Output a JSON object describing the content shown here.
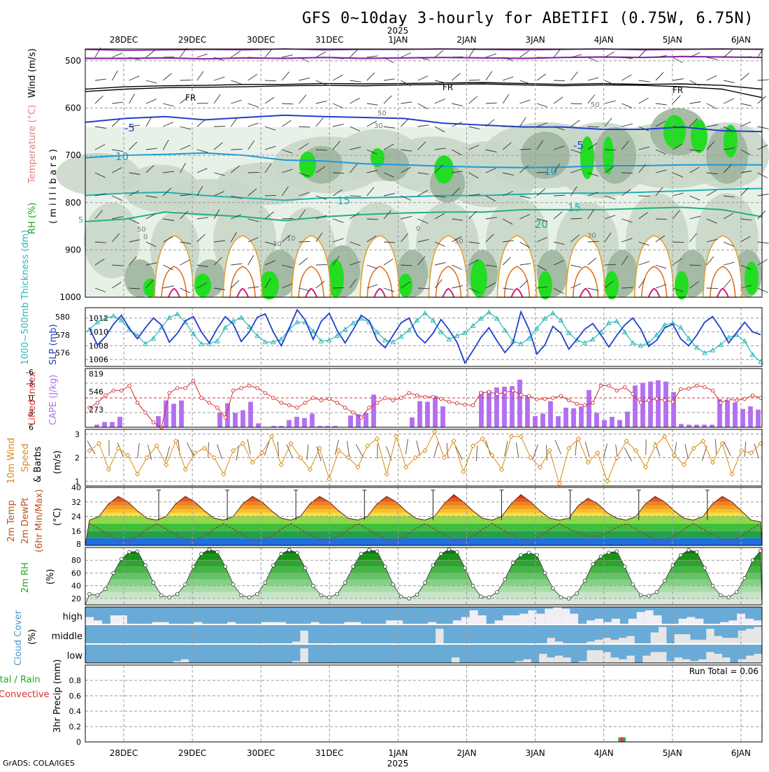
{
  "title": "GFS 0~10day 3-hourly for ABETIFI (0.75W, 6.75N)",
  "credit": "GrADS: COLA/IGES",
  "year_label": "2025",
  "dates": [
    "28DEC",
    "29DEC",
    "30DEC",
    "31DEC",
    "1JAN",
    "2JAN",
    "3JAN",
    "4JAN",
    "5JAN",
    "6JAN"
  ],
  "colors": {
    "grid": "#9a9a9a",
    "rh_dark": "#9fb59f",
    "rh_mid": "#c7d6c7",
    "rh_light": "#e8f1e8",
    "rh_green": "#22dd22",
    "slp": "#1f3fcf",
    "thickness": "#2ab8b8",
    "lifted": "#d43030",
    "cape": "#b36ff0",
    "wind10": "#d98a10",
    "cloud": "#6aaad6",
    "cloud_bar": "#e6e6e6",
    "rh2m": "#22aa22"
  },
  "panels": {
    "upper": {
      "ylabel_rh": "RH (%)",
      "ylabel_temp": "Temperature (°C)",
      "ylabel_wind": "Wind (m/s)",
      "ylabel_units": "( m i l l i b a r s )",
      "pressure_ticks": [
        "500",
        "600",
        "700",
        "800",
        "900",
        "1000"
      ],
      "contour_labels": [
        "-5",
        "FR",
        "FR",
        "FR",
        "-5",
        "-5",
        "10",
        "10",
        "15",
        "15",
        "20",
        "5",
        "10",
        "30",
        "50",
        "50",
        "0",
        "0",
        "30",
        "50",
        "50",
        "30"
      ]
    },
    "slp": {
      "ylabel_thick": "1000~500mb Thickness (dm)",
      "ylabel_slp": "SLP (mb)",
      "left_ticks": [
        "580",
        "578",
        "576"
      ],
      "right_ticks": [
        "1012",
        "1010",
        "1008",
        "1006"
      ]
    },
    "cape": {
      "ylabel_li": "Lifted Index",
      "ylabel_cape": "CAPE (J/kg)",
      "left_ticks": [
        "-3",
        "0",
        "3",
        "6",
        "-6"
      ],
      "right_ticks": [
        "819",
        "546",
        "273"
      ]
    },
    "wind10": {
      "ylabel_a": "10m Wind",
      "ylabel_b": "Speed",
      "ylabel_c": "& Barbs",
      "ylabel_units": "(m/s)",
      "ticks": [
        "3",
        "2",
        "1"
      ]
    },
    "temp2m": {
      "ylabel_a": "2m Temp",
      "ylabel_b": "2m DewPt",
      "ylabel_c": "(6hr Min/Max)",
      "ylabel_units": "(°C)",
      "ticks": [
        "40",
        "32",
        "24",
        "16",
        "8"
      ]
    },
    "rh2m": {
      "ylabel": "2m RH",
      "ylabel_units": "(%)",
      "ticks": [
        "80",
        "60",
        "40",
        "20"
      ]
    },
    "cloud": {
      "ylabel": "Cloud Cover",
      "ylabel_units": "(%)",
      "levels": [
        "high",
        "middle",
        "low"
      ]
    },
    "precip": {
      "ylabel_a": "Total / Rain",
      "ylabel_b": "Convective",
      "ylabel_c": "3hr Precip (mm)",
      "ticks": [
        "0.8",
        "0.6",
        "0.4",
        "0.2",
        "0"
      ],
      "run_total": "Run Total = 0.06"
    }
  },
  "chart_data": [
    {
      "type": "line",
      "name": "SLP",
      "ylabel": "SLP (mb)",
      "ylim": [
        1005,
        1013.5
      ],
      "values": [
        1010.5,
        1008.1,
        1009.3,
        1011.1,
        1012.4,
        1010.5,
        1009.0,
        1010.6,
        1012.0,
        1011.0,
        1008.5,
        1009.8,
        1011.6,
        1012.2,
        1010.0,
        1008.4,
        1010.5,
        1012.2,
        1011.1,
        1008.6,
        1010.0,
        1012.1,
        1012.6,
        1010.0,
        1008.0,
        1010.5,
        1013.2,
        1011.7,
        1008.9,
        1011.5,
        1012.7,
        1010.2,
        1008.4,
        1010.3,
        1012.4,
        1011.6,
        1008.8,
        1007.7,
        1009.5,
        1011.3,
        1012.0,
        1009.5,
        1008.4,
        1009.8,
        1011.8,
        1010.3,
        1008.5,
        1005.5,
        1007.3,
        1009.2,
        1010.6,
        1008.7,
        1007.0,
        1008.4,
        1012.9,
        1010.4,
        1006.8,
        1008.1,
        1010.8,
        1009.8,
        1007.5,
        1008.9,
        1010.4,
        1011.2,
        1009.6,
        1007.8,
        1009.5,
        1011.0,
        1012.0,
        1010.4,
        1007.9,
        1008.8,
        1010.6,
        1011.1,
        1009.0,
        1008.0,
        1009.5,
        1011.4,
        1012.2,
        1010.5,
        1008.4,
        1009.9,
        1011.4,
        1010.0,
        1009.6
      ]
    },
    {
      "type": "line",
      "name": "Thickness",
      "ylabel": "1000~500mb Thickness (dm)",
      "ylim": [
        574.5,
        581
      ],
      "values": [
        578.6,
        579.4,
        579.8,
        580.1,
        579.6,
        578.6,
        577.9,
        577.0,
        577.6,
        578.8,
        579.9,
        580.3,
        579.4,
        578.1,
        577.0,
        577.0,
        577.3,
        578.8,
        579.5,
        579.9,
        578.9,
        577.9,
        577.2,
        577.2,
        577.5,
        578.6,
        579.4,
        579.4,
        578.4,
        577.3,
        577.4,
        577.9,
        578.6,
        579.3,
        579.8,
        579.4,
        578.3,
        577.4,
        577.2,
        577.8,
        578.5,
        579.6,
        580.4,
        579.6,
        578.3,
        577.5,
        577.9,
        578.2,
        579.0,
        579.8,
        580.5,
        579.8,
        578.5,
        577.3,
        577.0,
        577.6,
        578.7,
        579.8,
        580.4,
        579.6,
        578.2,
        577.4,
        577.1,
        577.5,
        578.3,
        579.3,
        579.5,
        578.3,
        577.1,
        576.8,
        577.1,
        578.0,
        579.1,
        579.3,
        578.8,
        577.6,
        576.6,
        576.0,
        576.3,
        576.9,
        577.7,
        578.0,
        577.3,
        575.8,
        575.0
      ]
    },
    {
      "type": "bar",
      "name": "CAPE",
      "ylabel": "CAPE (J/kg)",
      "ylim": [
        0,
        900
      ],
      "values": [
        0,
        40,
        80,
        80,
        160,
        0,
        0,
        0,
        0,
        170,
        410,
        360,
        410,
        0,
        0,
        0,
        0,
        220,
        370,
        220,
        260,
        390,
        60,
        0,
        20,
        20,
        110,
        160,
        140,
        210,
        20,
        20,
        20,
        0,
        180,
        200,
        220,
        500,
        0,
        0,
        0,
        0,
        150,
        400,
        390,
        480,
        320,
        0,
        0,
        0,
        0,
        550,
        560,
        610,
        620,
        630,
        730,
        480,
        170,
        210,
        400,
        170,
        300,
        290,
        320,
        570,
        220,
        110,
        160,
        110,
        240,
        640,
        680,
        700,
        720,
        700,
        540,
        50,
        40,
        40,
        40,
        40,
        430,
        420,
        380,
        280,
        320,
        270
      ]
    },
    {
      "type": "line",
      "name": "Lifted Index",
      "ylabel": "Lifted Index",
      "ylim": [
        6,
        -6
      ],
      "values": [
        2,
        1,
        -0.5,
        -1.5,
        -1.5,
        -2.5,
        1,
        3,
        5,
        6,
        -1,
        -2,
        -2,
        -3.5,
        0,
        1,
        2,
        4,
        -1.5,
        -2,
        -2.5,
        -2,
        -1,
        0,
        1,
        1.5,
        2,
        1,
        0,
        0.5,
        0.2,
        1,
        2,
        3,
        4,
        2,
        1,
        0,
        0.5,
        0,
        -1,
        -0.5,
        -0.2,
        -0.2,
        0.2,
        0.8,
        1.1,
        1.4,
        1.5,
        -1,
        -1.2,
        -0.8,
        -1.1,
        -1.5,
        -0.6,
        -0.4,
        0.3,
        0.2,
        0,
        -0.4,
        0.5,
        1.2,
        1.5,
        1,
        -2.5,
        -2.5,
        -1.5,
        -2.2,
        -0.8,
        1,
        0.5,
        0.2,
        0.5,
        0.8,
        -1.8,
        -1.9,
        -2.5,
        -2.2,
        -1.5,
        1,
        0.3,
        0.5,
        0.2,
        -0.5,
        0
      ]
    },
    {
      "type": "line",
      "name": "10m Wind Speed",
      "ylabel": "10m Wind Speed & Barbs (m/s)",
      "ylim": [
        0.8,
        3.2
      ],
      "values": [
        2.3,
        2.6,
        1.5,
        2.4,
        2.1,
        1.3,
        2.0,
        2.5,
        1.7,
        2.7,
        1.5,
        2.2,
        2.4,
        2.0,
        1.3,
        2.3,
        2.6,
        1.8,
        2.2,
        2.9,
        1.7,
        2.6,
        2.0,
        1.5,
        2.4,
        1.1,
        2.3,
        2.0,
        1.6,
        2.5,
        2.8,
        1.3,
        2.9,
        1.6,
        2.0,
        2.3,
        3.1,
        2.0,
        2.7,
        1.4,
        2.5,
        2.8,
        2.1,
        1.5,
        2.9,
        2.9,
        2.0,
        1.6,
        2.3,
        0.9,
        2.4,
        2.8,
        1.8,
        2.2,
        1.0,
        2.0,
        2.7,
        2.3,
        1.6,
        2.5,
        2.9,
        2.1,
        1.7,
        2.4,
        2.7,
        1.8,
        2.6,
        1.3,
        2.3,
        2.2,
        2.6
      ]
    },
    {
      "type": "area",
      "name": "2m Temp",
      "ylabel": "2m Temp (°C)",
      "ylim": [
        8,
        40
      ],
      "values": [
        22,
        24,
        31,
        35,
        32,
        27,
        23,
        22,
        24,
        31,
        35,
        32,
        27,
        23,
        22,
        24,
        31,
        35,
        32,
        27,
        23,
        22,
        24,
        31,
        35,
        32,
        27,
        23,
        22,
        24,
        31,
        35,
        32,
        27,
        23,
        22,
        24,
        31,
        36,
        32,
        27,
        23,
        22,
        24,
        31,
        36,
        32,
        27,
        23,
        22,
        23,
        30,
        34,
        31,
        26,
        23,
        22,
        24,
        31,
        35,
        32,
        27,
        23,
        22,
        24,
        31,
        35,
        32,
        27,
        22,
        21
      ]
    },
    {
      "type": "line",
      "name": "2m DewPt",
      "ylabel": "2m DewPt (°C)",
      "ylim": [
        8,
        40
      ],
      "values": [
        20,
        17,
        14,
        11,
        11,
        13,
        17,
        20,
        17,
        14,
        11,
        11,
        13,
        17,
        20,
        17,
        14,
        11,
        11,
        13,
        17,
        20,
        17,
        14,
        11,
        11,
        13,
        17,
        20,
        17,
        14,
        11,
        11,
        13,
        17,
        20,
        17,
        14,
        11,
        11,
        13,
        17,
        20,
        17,
        14,
        11,
        11,
        13,
        17,
        20,
        17,
        15,
        13,
        13,
        15,
        18,
        20,
        17,
        14,
        11,
        11,
        13,
        17,
        20,
        17,
        14,
        11,
        11,
        13,
        17,
        20
      ]
    },
    {
      "type": "area",
      "name": "2m RH",
      "ylabel": "2m RH (%)",
      "ylim": [
        10,
        100
      ],
      "values": [
        27,
        25,
        35,
        60,
        82,
        93,
        94,
        72,
        45,
        25,
        22,
        27,
        42,
        70,
        90,
        97,
        93,
        70,
        42,
        25,
        22,
        27,
        45,
        72,
        90,
        96,
        92,
        68,
        40,
        25,
        22,
        27,
        45,
        70,
        90,
        96,
        94,
        70,
        42,
        23,
        20,
        26,
        45,
        72,
        90,
        97,
        93,
        68,
        40,
        23,
        22,
        30,
        50,
        76,
        88,
        92,
        88,
        60,
        36,
        22,
        20,
        28,
        48,
        74,
        86,
        92,
        94,
        70,
        42,
        25,
        24,
        30,
        48,
        72,
        88,
        96,
        93,
        68,
        40,
        25,
        22,
        30,
        52,
        80,
        95
      ]
    },
    {
      "type": "bar",
      "name": "3hr Precip",
      "ylabel": "3hr Precip (mm)",
      "ylim": [
        0,
        1
      ],
      "values": [
        0,
        0,
        0,
        0,
        0,
        0,
        0,
        0,
        0,
        0,
        0,
        0,
        0,
        0,
        0,
        0,
        0,
        0,
        0,
        0,
        0,
        0,
        0,
        0,
        0,
        0,
        0,
        0,
        0,
        0,
        0,
        0,
        0,
        0,
        0,
        0,
        0,
        0,
        0,
        0,
        0,
        0,
        0,
        0,
        0,
        0,
        0,
        0,
        0,
        0,
        0,
        0,
        0,
        0,
        0,
        0,
        0,
        0,
        0,
        0,
        0,
        0,
        0,
        0.06,
        0,
        0,
        0,
        0,
        0,
        0,
        0,
        0,
        0,
        0,
        0,
        0,
        0,
        0,
        0,
        0
      ]
    }
  ]
}
